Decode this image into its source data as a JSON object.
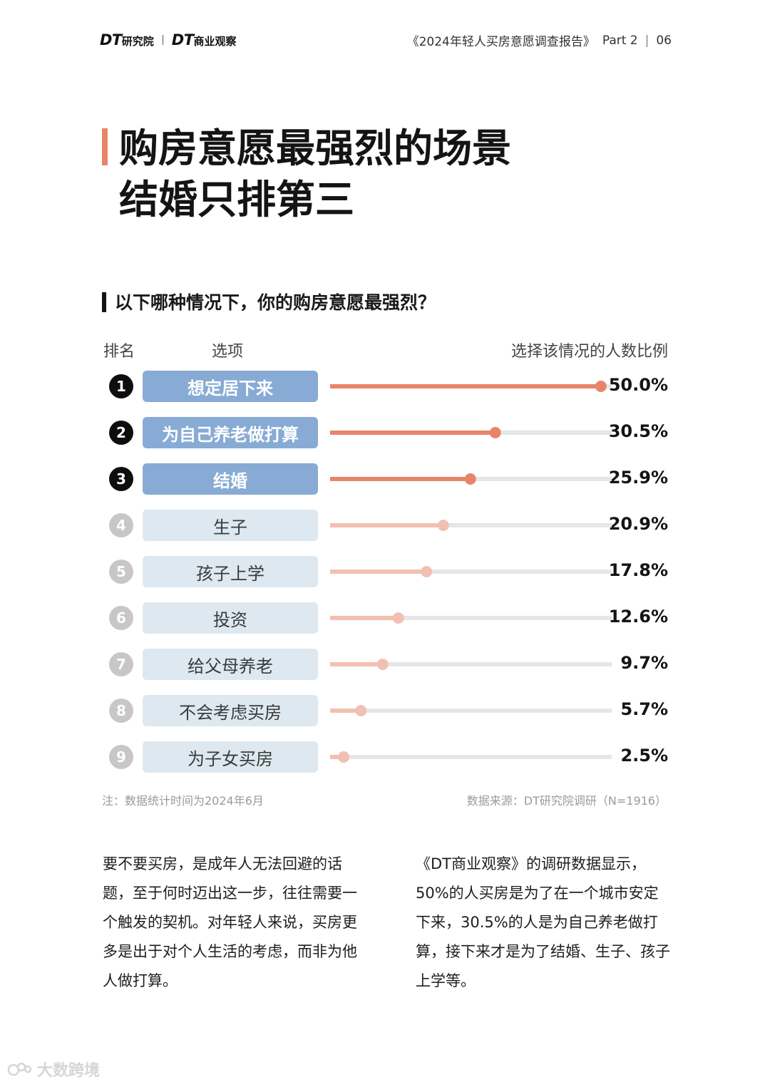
{
  "header": {
    "logo_primary": "DT",
    "logo_primary_sub": "研究院",
    "logo_secondary": "DT",
    "logo_secondary_sub": "商业观察",
    "report_title": "《2024年轻人买房意愿调查报告》",
    "part": "Part 2",
    "separator": "|",
    "page_number": "06"
  },
  "title": {
    "line1": "购房意愿最强烈的场景",
    "line2": "结婚只排第三"
  },
  "chart_data": {
    "type": "bar",
    "title": "以下哪种情况下，你的购房意愿最强烈？",
    "columns": {
      "rank": "排名",
      "option": "选项",
      "value": "选择该情况的人数比例"
    },
    "categories": [
      "想定居下来",
      "为自己养老做打算",
      "结婚",
      "生子",
      "孩子上学",
      "投资",
      "给父母养老",
      "不会考虑买房",
      "为子女买房"
    ],
    "ranks": [
      "1",
      "2",
      "3",
      "4",
      "5",
      "6",
      "7",
      "8",
      "9"
    ],
    "values": [
      50.0,
      30.5,
      25.9,
      20.9,
      17.8,
      12.6,
      9.7,
      5.7,
      2.5
    ],
    "labels": [
      "50.0%",
      "30.5%",
      "25.9%",
      "20.9%",
      "17.8%",
      "12.6%",
      "9.7%",
      "5.7%",
      "2.5%"
    ],
    "unit": "%",
    "highlight_top": 3,
    "colors": {
      "top_fill": "#e8846a",
      "rest_fill": "#f2c0b3",
      "track": "#e6e6e6",
      "top_label_bg": "#87abd4",
      "rest_label_bg": "#dde8f0",
      "top_rank_bg": "#0e0e0e",
      "rest_rank_bg": "#c7c7c7"
    }
  },
  "notes": {
    "left": "注：数据统计时间为2024年6月",
    "right": "数据来源：DT研究院调研（N=1916）"
  },
  "paragraphs": {
    "left": "要不要买房，是成年人无法回避的话题，至于何时迈出这一步，往往需要一个触发的契机。对年轻人来说，买房更多是出于对个人生活的考虑，而非为他人做打算。",
    "right": "《DT商业观察》的调研数据显示，50%的人买房是为了在一个城市安定下来，30.5%的人是为自己养老做打算，接下来才是为了结婚、生子、孩子上学等。"
  },
  "watermark": {
    "text": "大数跨境",
    "icon": "watermark-logo-icon"
  }
}
